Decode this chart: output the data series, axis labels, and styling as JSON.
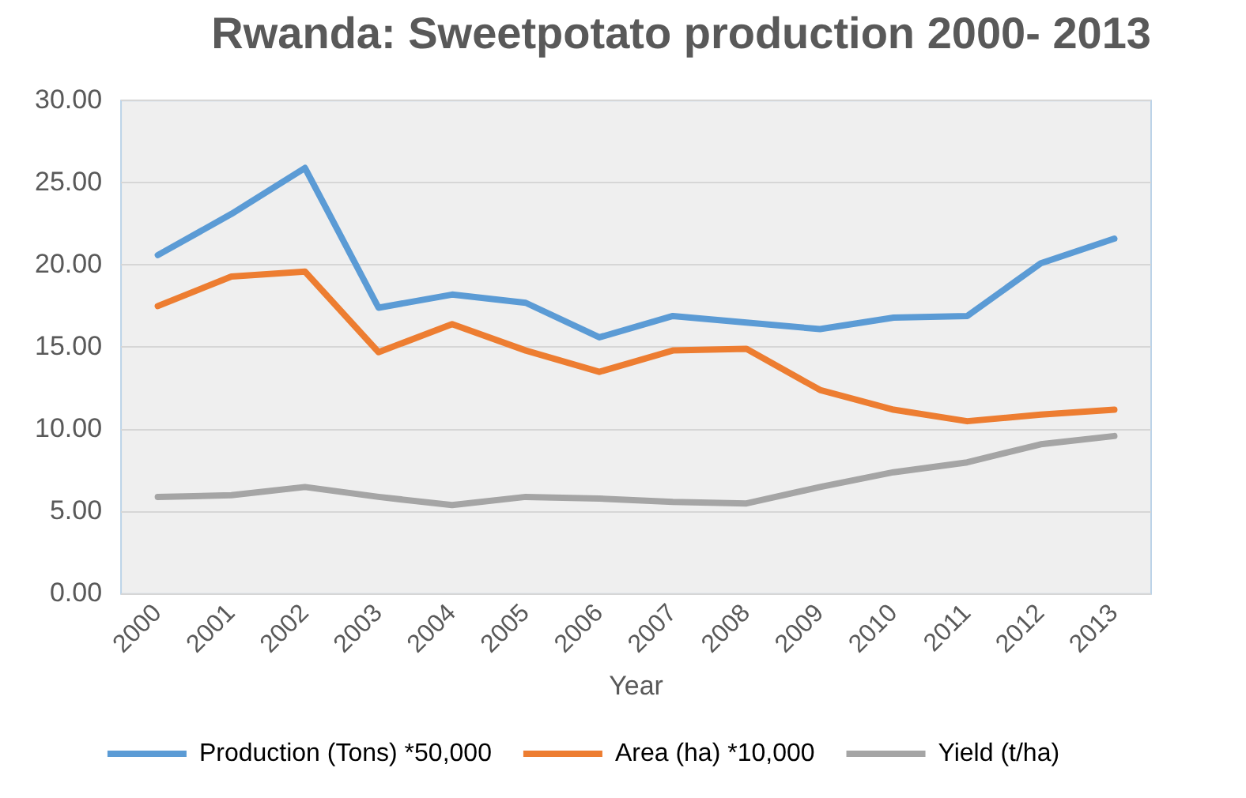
{
  "chart_data": {
    "type": "line",
    "title": "Rwanda: Sweetpotato production 2000- 2013",
    "xlabel": "Year",
    "categories": [
      "2000",
      "2001",
      "2002",
      "2003",
      "2004",
      "2005",
      "2006",
      "2007",
      "2008",
      "2009",
      "2010",
      "2011",
      "2012",
      "2013"
    ],
    "series": [
      {
        "name": "Production (Tons) *50,000",
        "color": "#5b9bd5",
        "values": [
          20.6,
          23.1,
          25.9,
          17.4,
          18.2,
          17.7,
          15.6,
          16.9,
          16.5,
          16.1,
          16.8,
          16.9,
          20.1,
          21.6
        ]
      },
      {
        "name": "Area (ha) *10,000",
        "color": "#ed7d31",
        "values": [
          17.5,
          19.3,
          19.6,
          14.7,
          16.4,
          14.8,
          13.5,
          14.8,
          14.9,
          12.4,
          11.2,
          10.5,
          10.9,
          11.2
        ]
      },
      {
        "name": "Yield (t/ha)",
        "color": "#a5a5a5",
        "values": [
          5.9,
          6.0,
          6.5,
          5.9,
          5.4,
          5.9,
          5.8,
          5.6,
          5.5,
          6.5,
          7.4,
          8.0,
          9.1,
          9.6
        ]
      }
    ],
    "ylim": [
      0,
      30
    ],
    "yticks": [
      {
        "value": 0,
        "label": "0.00"
      },
      {
        "value": 5,
        "label": "5.00"
      },
      {
        "value": 10,
        "label": "10.00"
      },
      {
        "value": 15,
        "label": "15.00"
      },
      {
        "value": 20,
        "label": "20.00"
      },
      {
        "value": 25,
        "label": "25.00"
      },
      {
        "value": 30,
        "label": "30.00"
      }
    ],
    "grid": "y",
    "legend": "bottom",
    "marker": "none",
    "line_style": "solid"
  }
}
